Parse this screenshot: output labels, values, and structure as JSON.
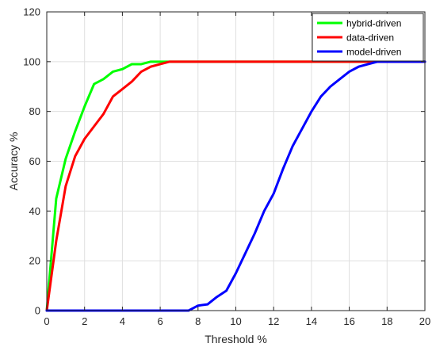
{
  "chart_data": {
    "type": "line",
    "title": "",
    "xlabel": "Threshold %",
    "ylabel": "Accuracy %",
    "xlim": [
      0,
      20
    ],
    "ylim": [
      0,
      120
    ],
    "xticks": [
      0,
      2,
      4,
      6,
      8,
      10,
      12,
      14,
      16,
      18,
      20
    ],
    "yticks": [
      0,
      20,
      40,
      60,
      80,
      100,
      120
    ],
    "grid": true,
    "legend_position": "top-right",
    "series": [
      {
        "name": "hybrid-driven",
        "color": "#00ff00",
        "x": [
          0,
          0.5,
          1,
          1.5,
          2,
          2.5,
          3,
          3.5,
          4,
          4.5,
          5,
          5.5,
          6,
          6.5,
          7,
          8,
          9,
          10,
          11,
          12,
          13,
          14,
          15,
          16,
          17,
          18,
          19,
          20
        ],
        "y": [
          0,
          45,
          61,
          72,
          82,
          91,
          93,
          96,
          97,
          99,
          99,
          100,
          100,
          100,
          100,
          100,
          100,
          100,
          100,
          100,
          100,
          100,
          100,
          100,
          100,
          100,
          100,
          100
        ]
      },
      {
        "name": "data-driven",
        "color": "#ff0000",
        "x": [
          0,
          0.5,
          1,
          1.5,
          2,
          2.5,
          3,
          3.5,
          4,
          4.5,
          5,
          5.5,
          6,
          6.5,
          7,
          8,
          9,
          10,
          11,
          12,
          13,
          14,
          15,
          16,
          17,
          18,
          19,
          20
        ],
        "y": [
          0,
          28,
          50,
          62,
          69,
          74,
          79,
          86,
          89,
          92,
          96,
          98,
          99,
          100,
          100,
          100,
          100,
          100,
          100,
          100,
          100,
          100,
          100,
          100,
          100,
          100,
          100,
          100
        ]
      },
      {
        "name": "model-driven",
        "color": "#0000ff",
        "x": [
          0,
          1,
          2,
          3,
          4,
          5,
          6,
          7,
          7.5,
          8,
          8.5,
          9,
          9.5,
          10,
          10.5,
          11,
          11.5,
          12,
          12.5,
          13,
          13.5,
          14,
          14.5,
          15,
          15.5,
          16,
          16.5,
          17,
          17.5,
          18,
          19,
          20
        ],
        "y": [
          0,
          0,
          0,
          0,
          0,
          0,
          0,
          0,
          0,
          2,
          2.5,
          5.5,
          8,
          15,
          23,
          31,
          40,
          47,
          57,
          66,
          73,
          80,
          86,
          90,
          93,
          96,
          98,
          99,
          100,
          100,
          100,
          100
        ]
      }
    ]
  }
}
